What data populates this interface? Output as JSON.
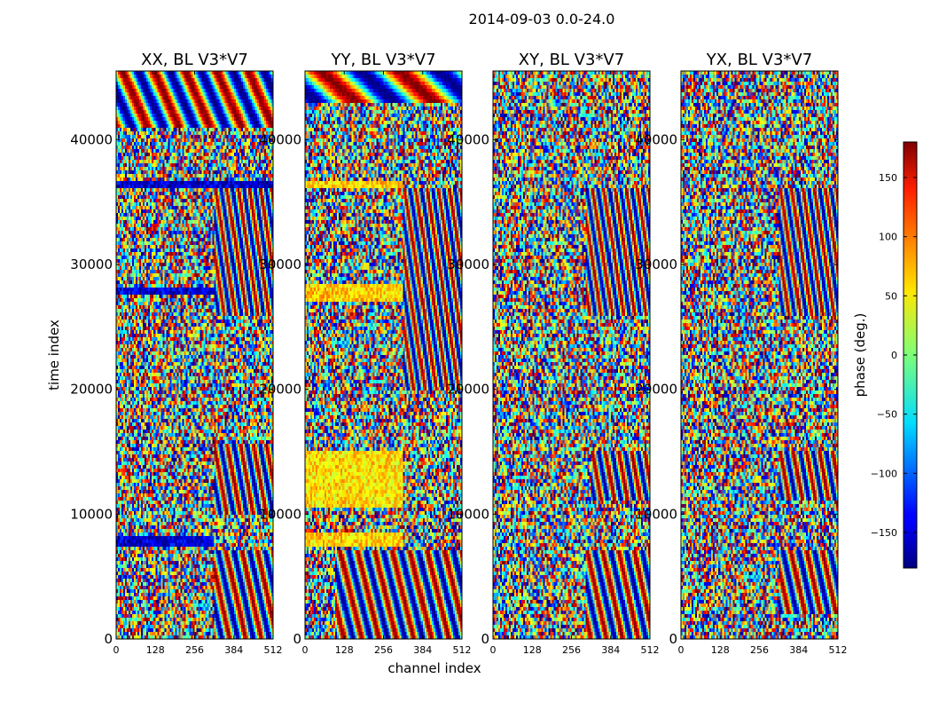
{
  "figure": {
    "suptitle": "2014-09-03 0.0-24.0",
    "xlabel": "channel index",
    "ylabel": "time index"
  },
  "colorbar": {
    "label": "phase (deg.)",
    "ticks": [
      150,
      100,
      50,
      0,
      -50,
      -100,
      -150
    ],
    "tick_labels": [
      "150",
      "100",
      "50",
      "0",
      "−50",
      "−100",
      "−150"
    ],
    "range": [
      -180,
      180
    ],
    "colormap": "jet"
  },
  "chart_data": [
    {
      "type": "heatmap",
      "title": "XX, BL V3*V7",
      "xlabel": "channel index",
      "ylabel": "time index",
      "xlim": [
        0,
        512
      ],
      "ylim": [
        0,
        45500
      ],
      "xticks": [
        0,
        128,
        256,
        384,
        512
      ],
      "yticks": [
        0,
        10000,
        20000,
        30000,
        40000
      ],
      "value_range": [
        -180,
        180
      ],
      "features": [
        {
          "kind": "fringe",
          "t0": 41000,
          "t1": 45500,
          "c0": 0,
          "c1": 512,
          "freq": 5
        },
        {
          "kind": "fringe",
          "t0": 0,
          "t1": 7000,
          "c0": 320,
          "c1": 512,
          "freq": 10
        },
        {
          "kind": "fringe",
          "t0": 10000,
          "t1": 15500,
          "c0": 320,
          "c1": 512,
          "freq": 12
        },
        {
          "kind": "fringe",
          "t0": 26000,
          "t1": 36000,
          "c0": 320,
          "c1": 512,
          "freq": 14
        },
        {
          "kind": "band",
          "t0": 7500,
          "t1": 8200,
          "c0": 0,
          "c1": 320,
          "phase": -150
        },
        {
          "kind": "band",
          "t0": 27500,
          "t1": 28200,
          "c0": 0,
          "c1": 320,
          "phase": -150
        },
        {
          "kind": "band",
          "t0": 36000,
          "t1": 36700,
          "c0": 0,
          "c1": 512,
          "phase": -150
        }
      ]
    },
    {
      "type": "heatmap",
      "title": "YY, BL V3*V7",
      "xlabel": "channel index",
      "ylabel": "time index",
      "xlim": [
        0,
        512
      ],
      "ylim": [
        0,
        45500
      ],
      "xticks": [
        0,
        128,
        256,
        384,
        512
      ],
      "yticks": [
        0,
        10000,
        20000,
        30000,
        40000
      ],
      "value_range": [
        -180,
        180
      ],
      "features": [
        {
          "kind": "fringe",
          "t0": 43000,
          "t1": 45500,
          "c0": 0,
          "c1": 512,
          "freq": 2
        },
        {
          "kind": "fringe",
          "t0": 0,
          "t1": 7000,
          "c0": 100,
          "c1": 512,
          "freq": 9
        },
        {
          "kind": "fringe",
          "t0": 20000,
          "t1": 36000,
          "c0": 320,
          "c1": 512,
          "freq": 14
        },
        {
          "kind": "band",
          "t0": 36000,
          "t1": 36800,
          "c0": 0,
          "c1": 320,
          "phase": 60
        },
        {
          "kind": "band",
          "t0": 27000,
          "t1": 28500,
          "c0": 0,
          "c1": 320,
          "phase": 60
        },
        {
          "kind": "band",
          "t0": 10500,
          "t1": 15000,
          "c0": 0,
          "c1": 320,
          "phase": 55
        },
        {
          "kind": "band",
          "t0": 7500,
          "t1": 8500,
          "c0": 0,
          "c1": 320,
          "phase": 60
        }
      ]
    },
    {
      "type": "heatmap",
      "title": "XY, BL V3*V7",
      "xlabel": "channel index",
      "ylabel": "time index",
      "xlim": [
        0,
        512
      ],
      "ylim": [
        0,
        45500
      ],
      "xticks": [
        0,
        128,
        256,
        384,
        512
      ],
      "yticks": [
        0,
        10000,
        20000,
        30000,
        40000
      ],
      "value_range": [
        -180,
        180
      ],
      "features": [
        {
          "kind": "fringe",
          "t0": 0,
          "t1": 7000,
          "c0": 300,
          "c1": 512,
          "freq": 10
        },
        {
          "kind": "fringe",
          "t0": 11000,
          "t1": 15000,
          "c0": 320,
          "c1": 512,
          "freq": 12
        },
        {
          "kind": "fringe",
          "t0": 26000,
          "t1": 36000,
          "c0": 300,
          "c1": 512,
          "freq": 14
        }
      ]
    },
    {
      "type": "heatmap",
      "title": "YX, BL V3*V7",
      "xlabel": "channel index",
      "ylabel": "time index",
      "xlim": [
        0,
        512
      ],
      "ylim": [
        0,
        45500
      ],
      "xticks": [
        0,
        128,
        256,
        384,
        512
      ],
      "yticks": [
        0,
        10000,
        20000,
        30000,
        40000
      ],
      "value_range": [
        -180,
        180
      ],
      "features": [
        {
          "kind": "fringe",
          "t0": 2000,
          "t1": 7000,
          "c0": 320,
          "c1": 512,
          "freq": 10
        },
        {
          "kind": "fringe",
          "t0": 11000,
          "t1": 15000,
          "c0": 320,
          "c1": 512,
          "freq": 12
        },
        {
          "kind": "fringe",
          "t0": 26000,
          "t1": 36000,
          "c0": 320,
          "c1": 512,
          "freq": 14
        }
      ]
    }
  ]
}
